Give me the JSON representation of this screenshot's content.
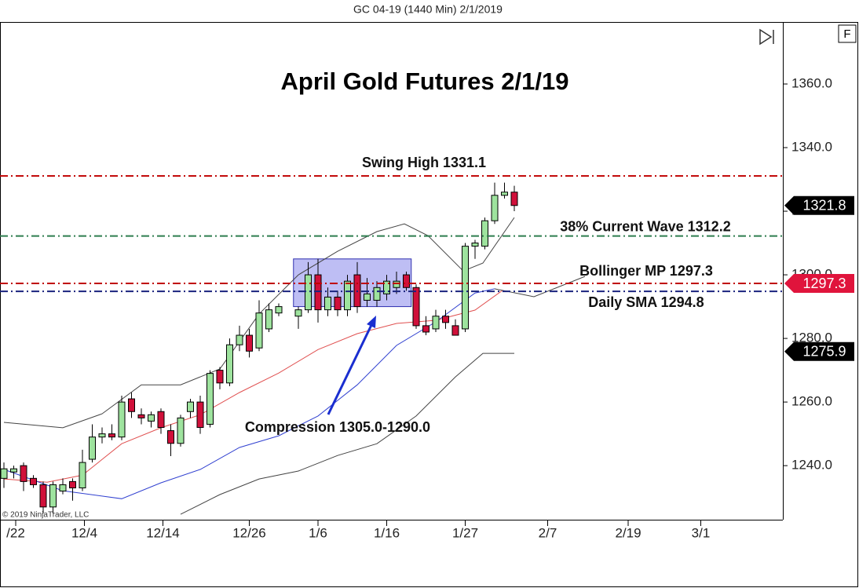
{
  "header": "GC 04-19 (1440 Min)  2/1/2019",
  "badge": "F",
  "copyright": "© 2019 NinjaTrader, LLC",
  "chart_data": {
    "type": "candlestick",
    "title": "April Gold Futures 2/1/19",
    "xlim": [
      -0.4,
      79.36
    ],
    "ylim": [
      1223,
      1379.5
    ],
    "xticks": [
      {
        "value": 1.2,
        "label": "/22"
      },
      {
        "value": 8.2,
        "label": "12/4"
      },
      {
        "value": 16.2,
        "label": "12/14"
      },
      {
        "value": 25,
        "label": "12/26"
      },
      {
        "value": 32,
        "label": "1/6"
      },
      {
        "value": 39,
        "label": "1/16"
      },
      {
        "value": 47,
        "label": "1/27"
      },
      {
        "value": 55.4,
        "label": "2/7"
      },
      {
        "value": 63.6,
        "label": "2/19"
      },
      {
        "value": 71,
        "label": "3/1"
      }
    ],
    "yticks": [
      {
        "value": 1240,
        "label": "1240.0"
      },
      {
        "value": 1260,
        "label": "1260.0"
      },
      {
        "value": 1280,
        "label": "1280.0"
      },
      {
        "value": 1300,
        "label": "1300.0"
      },
      {
        "value": 1320,
        "label": "1320.0"
      },
      {
        "value": 1340,
        "label": "1340.0"
      },
      {
        "value": 1360,
        "label": "1360.0"
      }
    ],
    "up_color": "#9ee39e",
    "down_color": "#d0103a",
    "candles": {
      "x": [
        0,
        1,
        2,
        3,
        4,
        5,
        6,
        7,
        8,
        9,
        10,
        11,
        12,
        13,
        14,
        15,
        16,
        17,
        18,
        19,
        20,
        21,
        22,
        23,
        24,
        25,
        26,
        27,
        28,
        30,
        31,
        32,
        33,
        34,
        35,
        36,
        37,
        38,
        39,
        40,
        41,
        42,
        43,
        44,
        45,
        46,
        47,
        48,
        49,
        50,
        51,
        52
      ],
      "open": [
        1236,
        1238,
        1240,
        1236,
        1234,
        1227,
        1232,
        1235,
        1233,
        1242,
        1249,
        1250,
        1249,
        1261,
        1256,
        1254,
        1257,
        1251,
        1247,
        1257,
        1260,
        1253,
        1270,
        1266,
        1278,
        1281,
        1277,
        1283,
        1288,
        1287,
        1289,
        1300,
        1289,
        1293,
        1289,
        1300,
        1292,
        1292,
        1294,
        1296,
        1300,
        1296,
        1284,
        1283,
        1287,
        1284,
        1283,
        1309,
        1309,
        1317,
        1325,
        1326
      ],
      "high": [
        1241,
        1240,
        1241,
        1237,
        1235,
        1235,
        1236,
        1236,
        1245,
        1253,
        1252,
        1253,
        1262,
        1263,
        1258,
        1257,
        1258,
        1253,
        1256,
        1261,
        1262,
        1270,
        1271,
        1280,
        1284,
        1283,
        1292,
        1291,
        1291,
        1290,
        1304,
        1305,
        1296,
        1295,
        1300,
        1304,
        1299,
        1298,
        1300,
        1301,
        1301,
        1297,
        1287,
        1289,
        1289,
        1286,
        1310,
        1311,
        1318,
        1329,
        1329,
        1328
      ],
      "low": [
        1233,
        1236,
        1232,
        1233,
        1225,
        1225,
        1231,
        1229,
        1232,
        1241,
        1247,
        1248,
        1248,
        1255,
        1253,
        1252,
        1250,
        1243,
        1246,
        1255,
        1250,
        1252,
        1264,
        1265,
        1276,
        1274,
        1276,
        1282,
        1287,
        1283,
        1288,
        1285,
        1287,
        1287,
        1287,
        1288,
        1290,
        1290,
        1292,
        1294,
        1295,
        1283,
        1281,
        1282,
        1283,
        1281,
        1282,
        1305,
        1308,
        1316,
        1324,
        1320
      ],
      "close": [
        1239,
        1239,
        1235,
        1234,
        1227,
        1234,
        1234,
        1233,
        1241,
        1249,
        1250,
        1249,
        1260,
        1257,
        1255,
        1256,
        1252,
        1247,
        1255,
        1260,
        1252,
        1269,
        1266,
        1278,
        1281,
        1276,
        1288,
        1289,
        1290,
        1289,
        1300,
        1289,
        1293,
        1289,
        1298,
        1290,
        1294,
        1296,
        1298,
        1298,
        1296,
        1284,
        1282,
        1287,
        1285,
        1281,
        1309,
        1310,
        1317,
        1325,
        1326,
        1321.8
      ]
    },
    "lines": [
      {
        "color": "#444444",
        "x": [
          0,
          6,
          10,
          14,
          18,
          22,
          26,
          30,
          34,
          38,
          40.8,
          43.2,
          46.8,
          48.8,
          52
        ],
        "values": [
          1253.6,
          1251.9,
          1256.3,
          1265.4,
          1265.4,
          1270.4,
          1287.7,
          1300,
          1307.4,
          1313.6,
          1316,
          1312.3,
          1301.2,
          1303.7,
          1318
        ]
      },
      {
        "color": "#444444",
        "x": [
          18,
          22,
          26,
          30,
          34,
          38,
          42,
          46,
          48.8,
          52
        ],
        "values": [
          1224.7,
          1230.9,
          1235.8,
          1238.3,
          1243.2,
          1246.9,
          1255.6,
          1267.9,
          1275.3,
          1275.3
        ]
      },
      {
        "color": "#e05050",
        "x": [
          0,
          4.4,
          8,
          12,
          16,
          20,
          24,
          28,
          32,
          36,
          40,
          44,
          48,
          50.8
        ],
        "values": [
          1235.8,
          1234.8,
          1237,
          1246.9,
          1251.9,
          1256,
          1263,
          1269.1,
          1276.5,
          1281.5,
          1284.7,
          1285.7,
          1288.9,
          1295.1
        ]
      },
      {
        "color": "#3040d0",
        "x": [
          0,
          6,
          12,
          16,
          20,
          24,
          28,
          32,
          36,
          40,
          44,
          48,
          50
        ],
        "values": [
          1238.8,
          1232.1,
          1229.6,
          1234.6,
          1238.8,
          1245.7,
          1249.4,
          1255.6,
          1265.4,
          1277.8,
          1285.2,
          1294.3,
          1295.6
        ]
      },
      {
        "color": "#444444",
        "x": [
          50,
          54,
          59.2
        ],
        "values": [
          1295.6,
          1293.1,
          1299.5
        ]
      }
    ],
    "levels": [
      {
        "value": 1331.1,
        "label": "Swing High 1331.1",
        "color": "#c00000"
      },
      {
        "value": 1312.2,
        "label": "38% Current Wave 1312.2",
        "color": "#2e7d4f"
      },
      {
        "value": 1297.3,
        "label": "Bollinger MP 1297.3",
        "color": "#c00000"
      },
      {
        "value": 1294.8,
        "label": "Daily SMA 1294.8",
        "color": "#1a237e"
      }
    ],
    "compression": {
      "x": [
        30,
        41
      ],
      "ylim": [
        1290,
        1305
      ],
      "label": "Compression 1305.0-1290.0"
    },
    "price_tags": [
      {
        "value": 1321.8,
        "color": "#000000"
      },
      {
        "value": 1297.3,
        "color": "#e0143c"
      },
      {
        "value": 1275.9,
        "color": "#000000"
      }
    ]
  }
}
